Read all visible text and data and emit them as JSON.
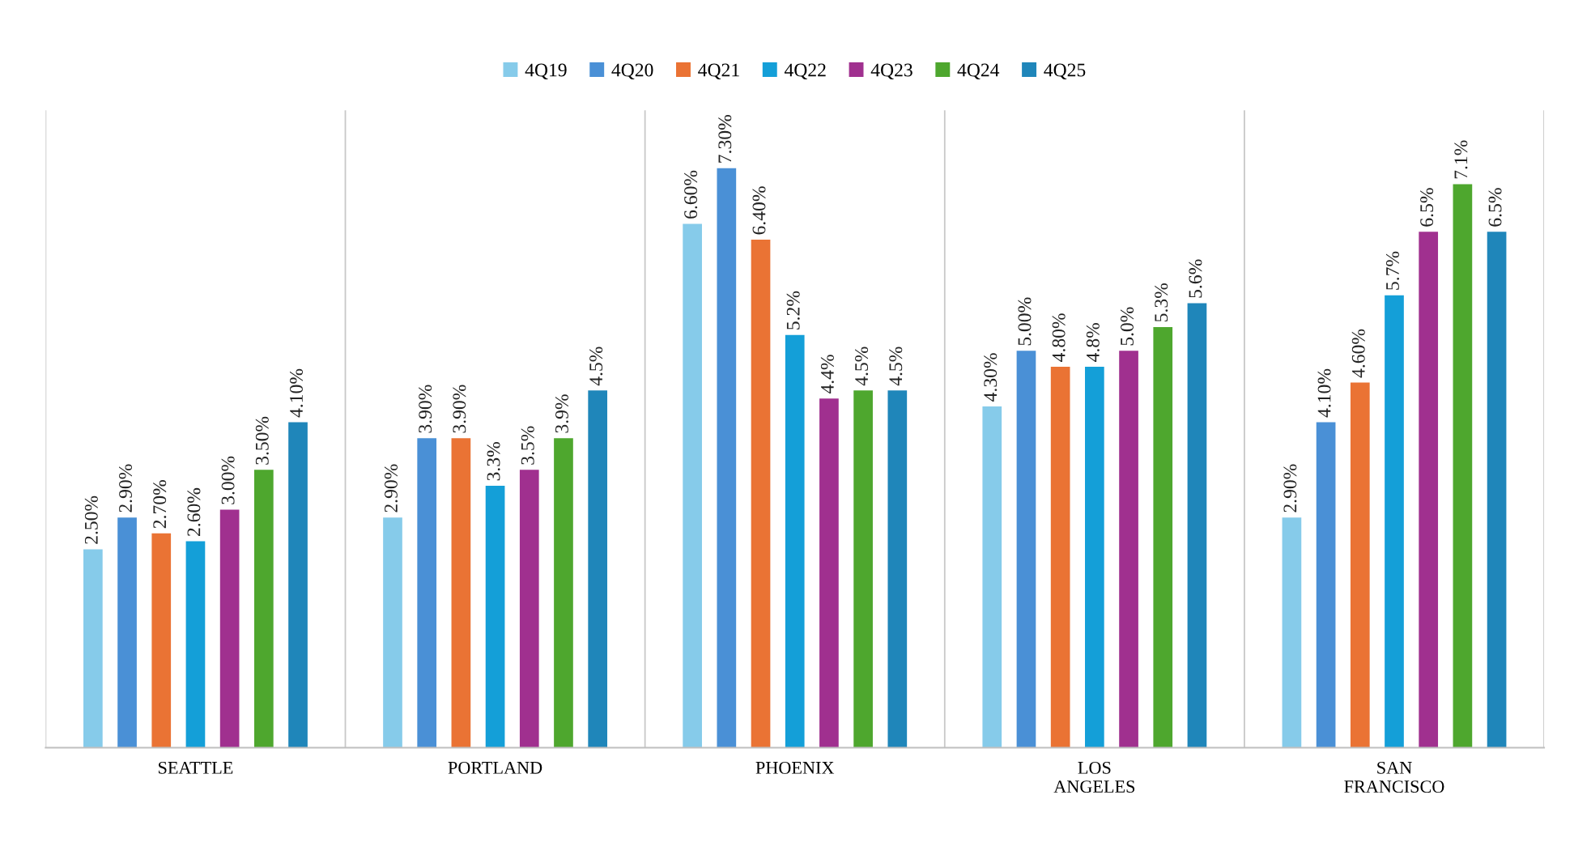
{
  "chart_data": {
    "type": "bar",
    "categories": [
      "SEATTLE",
      "PORTLAND",
      "PHOENIX",
      "LOS\nANGELES",
      "SAN\nFRANCISCO"
    ],
    "series": [
      {
        "name": "4Q19",
        "color": "#86cbea",
        "values": [
          2.5,
          2.9,
          6.6,
          4.3,
          2.9
        ],
        "value_labels": [
          "2.50%",
          "2.90%",
          "6.60%",
          "4.30%",
          "2.90%"
        ]
      },
      {
        "name": "4Q20",
        "color": "#4a90d6",
        "values": [
          2.9,
          3.9,
          7.3,
          5.0,
          4.1
        ],
        "value_labels": [
          "2.90%",
          "3.90%",
          "7.30%",
          "5.00%",
          "4.10%"
        ]
      },
      {
        "name": "4Q21",
        "color": "#ea7334",
        "values": [
          2.7,
          3.9,
          6.4,
          4.8,
          4.6
        ],
        "value_labels": [
          "2.70%",
          "3.90%",
          "6.40%",
          "4.80%",
          "4.60%"
        ]
      },
      {
        "name": "4Q22",
        "color": "#149fd8",
        "values": [
          2.6,
          3.3,
          5.2,
          4.8,
          5.7
        ],
        "value_labels": [
          "2.60%",
          "3.3%",
          "5.2%",
          "4.8%",
          "5.7%"
        ]
      },
      {
        "name": "4Q23",
        "color": "#a0308f",
        "values": [
          3.0,
          3.5,
          4.4,
          5.0,
          6.5
        ],
        "value_labels": [
          "3.00%",
          "3.5%",
          "4.4%",
          "5.0%",
          "6.5%"
        ]
      },
      {
        "name": "4Q24",
        "color": "#4ea72e",
        "values": [
          3.5,
          3.9,
          4.5,
          5.3,
          7.1
        ],
        "value_labels": [
          "3.50%",
          "3.9%",
          "4.5%",
          "5.3%",
          "7.1%"
        ]
      },
      {
        "name": "4Q25",
        "color": "#1f86ba",
        "values": [
          4.1,
          4.5,
          4.5,
          5.6,
          6.5
        ],
        "value_labels": [
          "4.10%",
          "4.5%",
          "4.5%",
          "5.6%",
          "6.5%"
        ]
      }
    ],
    "grid": "x",
    "legend": "top"
  }
}
